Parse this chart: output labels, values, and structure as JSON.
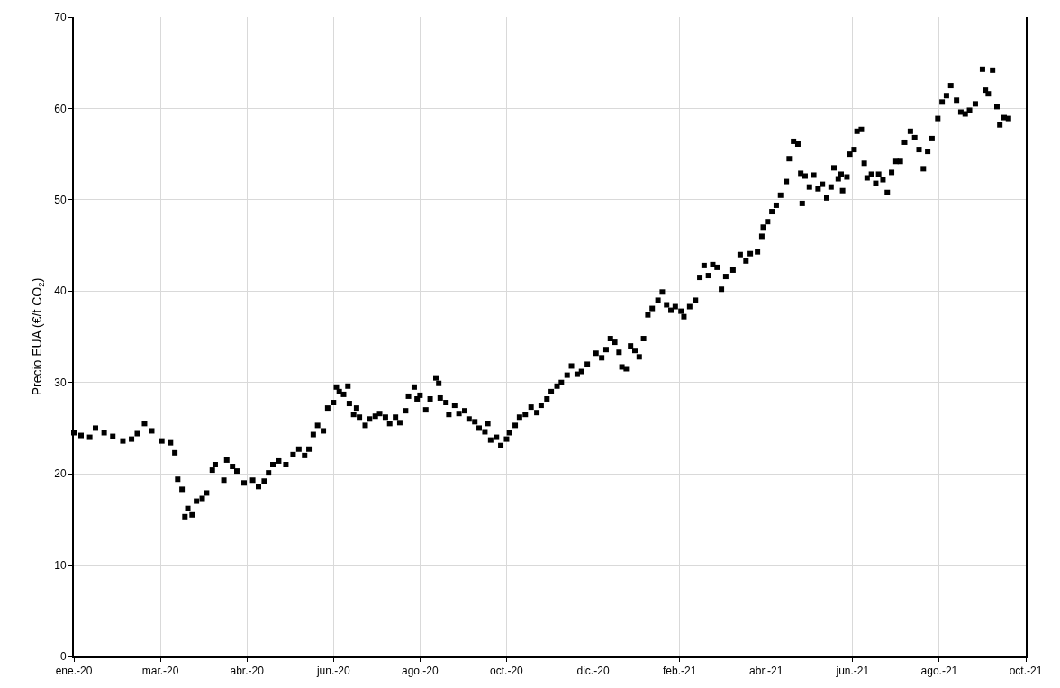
{
  "chart_data": {
    "type": "scatter",
    "ylabel": "Precio EUA (€/t CO$_{2}$)",
    "x": [
      "2020-01-01",
      "2020-01-06",
      "2020-01-12",
      "2020-01-16",
      "2020-01-22",
      "2020-01-28",
      "2020-02-04",
      "2020-02-10",
      "2020-02-14",
      "2020-02-19",
      "2020-02-24",
      "2020-03-02",
      "2020-03-08",
      "2020-03-11",
      "2020-03-13",
      "2020-03-16",
      "2020-03-18",
      "2020-03-20",
      "2020-03-23",
      "2020-03-26",
      "2020-03-30",
      "2020-04-02",
      "2020-04-06",
      "2020-04-08",
      "2020-04-14",
      "2020-04-16",
      "2020-04-20",
      "2020-04-23",
      "2020-04-28",
      "2020-05-04",
      "2020-05-08",
      "2020-05-12",
      "2020-05-15",
      "2020-05-18",
      "2020-05-22",
      "2020-05-27",
      "2020-06-01",
      "2020-06-05",
      "2020-06-09",
      "2020-06-12",
      "2020-06-15",
      "2020-06-18",
      "2020-06-22",
      "2020-06-25",
      "2020-06-29",
      "2020-07-01",
      "2020-07-03",
      "2020-07-06",
      "2020-07-09",
      "2020-07-10",
      "2020-07-13",
      "2020-07-15",
      "2020-07-17",
      "2020-07-21",
      "2020-07-24",
      "2020-07-28",
      "2020-07-31",
      "2020-08-04",
      "2020-08-07",
      "2020-08-11",
      "2020-08-14",
      "2020-08-18",
      "2020-08-20",
      "2020-08-24",
      "2020-08-26",
      "2020-08-28",
      "2020-09-01",
      "2020-09-04",
      "2020-09-08",
      "2020-09-10",
      "2020-09-11",
      "2020-09-15",
      "2020-09-17",
      "2020-09-21",
      "2020-09-24",
      "2020-09-28",
      "2020-10-01",
      "2020-10-05",
      "2020-10-08",
      "2020-10-12",
      "2020-10-14",
      "2020-10-16",
      "2020-10-20",
      "2020-10-23",
      "2020-10-27",
      "2020-10-29",
      "2020-11-02",
      "2020-11-05",
      "2020-11-09",
      "2020-11-13",
      "2020-11-17",
      "2020-11-20",
      "2020-11-24",
      "2020-11-27",
      "2020-12-01",
      "2020-12-04",
      "2020-12-08",
      "2020-12-11",
      "2020-12-15",
      "2020-12-18",
      "2020-12-22",
      "2020-12-28",
      "2021-01-01",
      "2021-01-04",
      "2021-01-07",
      "2021-01-10",
      "2021-01-13",
      "2021-01-15",
      "2021-01-18",
      "2021-01-21",
      "2021-01-24",
      "2021-01-27",
      "2021-01-30",
      "2021-02-02",
      "2021-02-05",
      "2021-02-09",
      "2021-02-12",
      "2021-02-15",
      "2021-02-18",
      "2021-02-21",
      "2021-02-25",
      "2021-02-27",
      "2021-03-03",
      "2021-03-07",
      "2021-03-10",
      "2021-03-13",
      "2021-03-16",
      "2021-03-19",
      "2021-03-22",
      "2021-03-25",
      "2021-03-28",
      "2021-04-02",
      "2021-04-07",
      "2021-04-11",
      "2021-04-14",
      "2021-04-19",
      "2021-04-22",
      "2021-04-23",
      "2021-04-26",
      "2021-04-29",
      "2021-05-02",
      "2021-05-05",
      "2021-05-09",
      "2021-05-11",
      "2021-05-14",
      "2021-05-17",
      "2021-05-19",
      "2021-05-20",
      "2021-05-22",
      "2021-05-25",
      "2021-05-28",
      "2021-05-31",
      "2021-06-03",
      "2021-06-06",
      "2021-06-09",
      "2021-06-11",
      "2021-06-14",
      "2021-06-16",
      "2021-06-17",
      "2021-06-20",
      "2021-06-22",
      "2021-06-25",
      "2021-06-27",
      "2021-06-30",
      "2021-07-02",
      "2021-07-04",
      "2021-07-07",
      "2021-07-10",
      "2021-07-12",
      "2021-07-15",
      "2021-07-18",
      "2021-07-21",
      "2021-07-24",
      "2021-07-27",
      "2021-07-30",
      "2021-08-03",
      "2021-08-06",
      "2021-08-09",
      "2021-08-12",
      "2021-08-15",
      "2021-08-18",
      "2021-08-22",
      "2021-08-25",
      "2021-08-28",
      "2021-08-31",
      "2021-09-04",
      "2021-09-07",
      "2021-09-10",
      "2021-09-13",
      "2021-09-17",
      "2021-09-22",
      "2021-09-24",
      "2021-09-26",
      "2021-09-29",
      "2021-10-02",
      "2021-10-04",
      "2021-10-07",
      "2021-10-10"
    ],
    "series": [
      {
        "color": "#000000",
        "values": [
          24.5,
          24.2,
          24.0,
          25.0,
          24.5,
          24.1,
          23.6,
          23.8,
          24.4,
          25.5,
          24.7,
          23.6,
          23.4,
          22.3,
          19.4,
          18.3,
          15.3,
          16.2,
          15.5,
          17.0,
          17.3,
          17.9,
          20.4,
          21.0,
          19.3,
          21.5,
          20.8,
          20.3,
          19.0,
          19.3,
          18.6,
          19.2,
          20.1,
          21.0,
          21.4,
          21.0,
          22.1,
          22.7,
          22.0,
          22.7,
          24.3,
          25.3,
          24.7,
          27.2,
          27.8,
          29.5,
          29.0,
          28.7,
          29.6,
          27.7,
          26.5,
          27.2,
          26.2,
          25.3,
          26.0,
          26.3,
          26.6,
          26.2,
          25.5,
          26.2,
          25.6,
          26.9,
          28.5,
          29.5,
          28.2,
          28.6,
          27.0,
          28.2,
          30.5,
          29.9,
          28.3,
          27.8,
          26.5,
          27.5,
          26.6,
          26.9,
          26.0,
          25.7,
          25.0,
          24.6,
          25.5,
          23.7,
          24.0,
          23.1,
          23.8,
          24.5,
          25.3,
          26.2,
          26.5,
          27.3,
          26.7,
          27.5,
          28.2,
          29.0,
          29.6,
          30.0,
          30.8,
          31.8,
          30.9,
          31.2,
          32.0,
          33.2,
          32.7,
          33.6,
          34.8,
          34.4,
          33.3,
          31.7,
          31.5,
          34.0,
          33.5,
          32.8,
          34.8,
          37.4,
          38.1,
          39.0,
          39.9,
          38.5,
          37.9,
          38.3,
          37.8,
          37.2,
          38.3,
          39.0,
          41.5,
          42.8,
          41.7,
          42.9,
          42.6,
          40.2,
          41.6,
          42.3,
          44.0,
          43.3,
          44.1,
          44.3,
          46.0,
          47.0,
          47.6,
          48.7,
          49.4,
          50.5,
          52.0,
          54.5,
          56.4,
          56.1,
          52.9,
          49.6,
          52.6,
          51.4,
          52.7,
          51.2,
          51.7,
          50.2,
          51.4,
          53.5,
          52.3,
          52.8,
          51.0,
          52.5,
          55.0,
          55.5,
          57.5,
          57.7,
          54.0,
          52.4,
          52.8,
          51.8,
          52.8,
          52.2,
          50.8,
          53.0,
          54.2,
          54.2,
          56.3,
          57.5,
          56.8,
          55.5,
          53.4,
          55.3,
          56.7,
          58.9,
          60.7,
          61.4,
          62.5,
          60.9,
          59.6,
          59.4,
          59.8,
          60.5,
          64.3,
          62.0,
          61.6,
          64.2,
          60.2,
          58.2,
          59.0,
          58.9
        ]
      }
    ],
    "marker": "square",
    "grid": true,
    "xlim": [
      "2020-01-01",
      "2021-10-22"
    ],
    "xticks": [
      {
        "value": "2020-01-01",
        "label": "ene.-20"
      },
      {
        "value": "2020-03-01",
        "label": "mar.-20"
      },
      {
        "value": "2020-04-30",
        "label": "abr.-20"
      },
      {
        "value": "2020-06-29",
        "label": "jun.-20"
      },
      {
        "value": "2020-08-28",
        "label": "ago.-20"
      },
      {
        "value": "2020-10-27",
        "label": "oct.-20"
      },
      {
        "value": "2020-12-26",
        "label": "dic.-20"
      },
      {
        "value": "2021-02-24",
        "label": "feb.-21"
      },
      {
        "value": "2021-04-25",
        "label": "abr.-21"
      },
      {
        "value": "2021-06-24",
        "label": "jun.-21"
      },
      {
        "value": "2021-08-23",
        "label": "ago.-21"
      },
      {
        "value": "2021-10-22",
        "label": "oct.-21"
      }
    ],
    "ylim": [
      0,
      70
    ],
    "yticks": [
      0,
      10,
      20,
      30,
      40,
      50,
      60,
      70
    ]
  }
}
